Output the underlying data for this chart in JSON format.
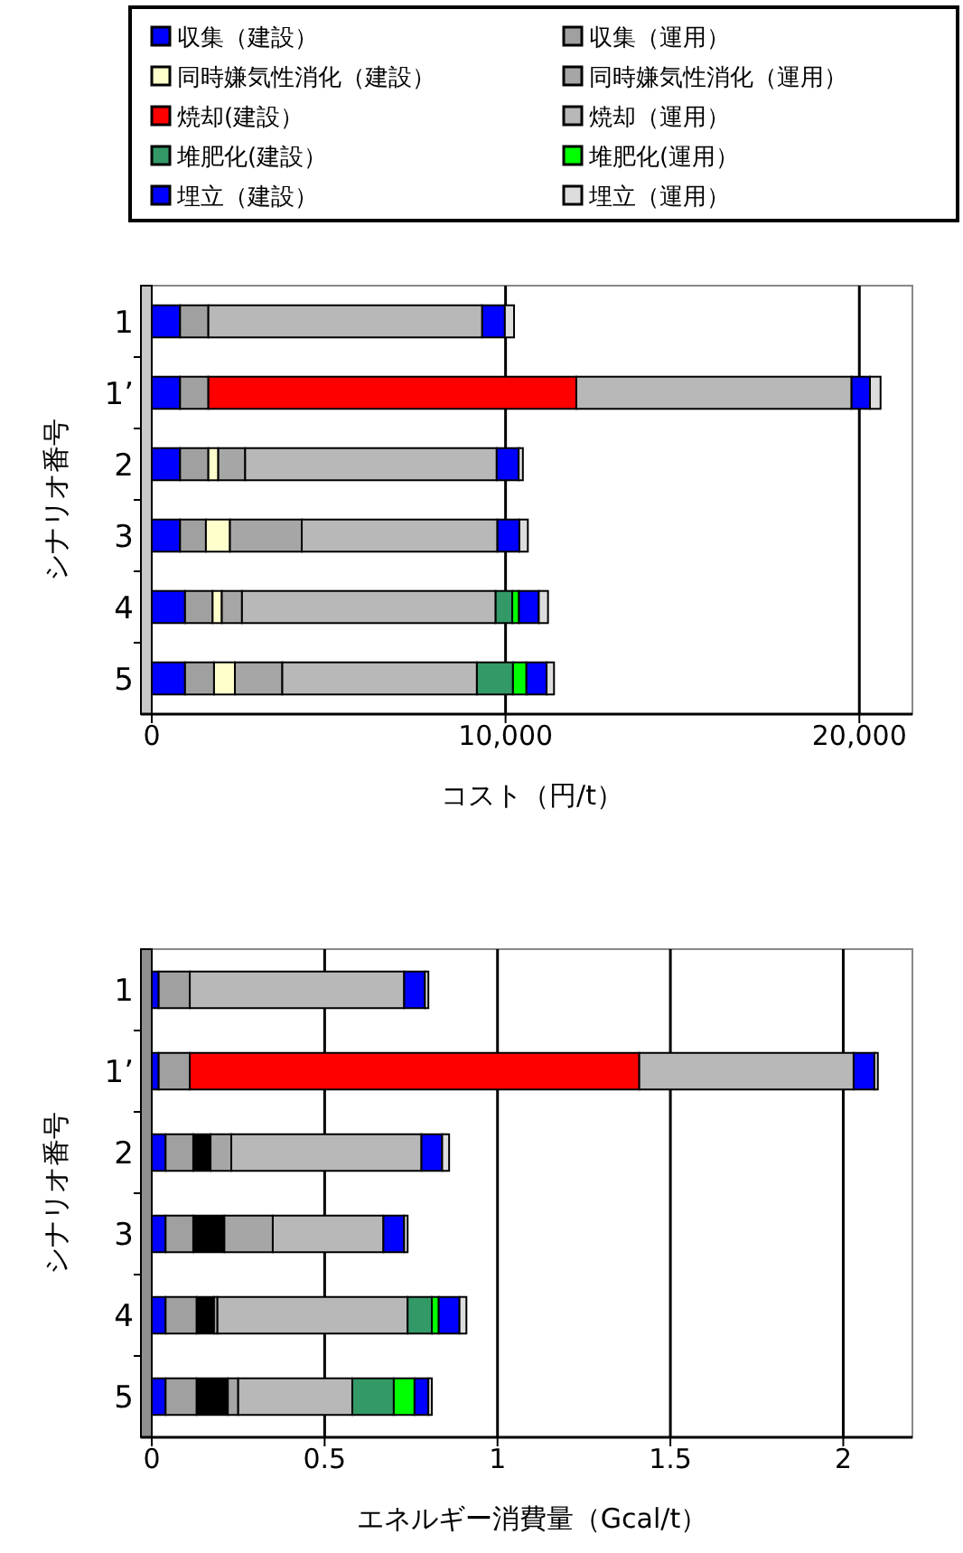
{
  "chart_data": [
    {
      "type": "bar",
      "orientation": "horizontal",
      "stacked": true,
      "legend": "top",
      "grid": "x",
      "xlabel": "コスト（円/t）",
      "ylabel": "シナリオ番号",
      "categories": [
        "1",
        "1’",
        "2",
        "3",
        "4",
        "5"
      ],
      "xlim": [
        0,
        21500
      ],
      "xticks": [
        0,
        {
          "value": 10000,
          "label": "10,000"
        },
        {
          "value": 20000,
          "label": "20,000"
        }
      ],
      "series": [
        {
          "name": "収集（建設）",
          "color": "#0000ff",
          "values": [
            800,
            800,
            800,
            800,
            940,
            940
          ]
        },
        {
          "name": "収集（運用）",
          "color": "#a0a0a0",
          "values": [
            800,
            800,
            800,
            730,
            780,
            820
          ]
        },
        {
          "name": "同時嫌気性消化（建設）",
          "color": "#ffffcc",
          "values": [
            null,
            null,
            280,
            680,
            260,
            590
          ]
        },
        {
          "name": "同時嫌気性消化（運用）",
          "color": "#a6a6a6",
          "values": [
            null,
            null,
            760,
            2030,
            570,
            1340
          ]
        },
        {
          "name": "焼却(建設）",
          "color": "#ff0000",
          "values": [
            null,
            10400,
            null,
            null,
            null,
            null
          ]
        },
        {
          "name": "焼却（運用）",
          "color": "#b8b8b8",
          "values": [
            7740,
            7780,
            7110,
            5530,
            7170,
            5500
          ]
        },
        {
          "name": "堆肥化(建設）",
          "color": "#339966",
          "values": [
            null,
            null,
            null,
            null,
            470,
            1020
          ]
        },
        {
          "name": "堆肥化(運用）",
          "color": "#00ff00",
          "values": [
            null,
            null,
            null,
            null,
            190,
            380
          ]
        },
        {
          "name": "埋立（建設）",
          "color": "#0000ff",
          "values": [
            640,
            520,
            620,
            620,
            560,
            570
          ]
        },
        {
          "name": "埋立（運用）",
          "color": "#dddddd",
          "values": [
            260,
            300,
            120,
            240,
            260,
            210
          ]
        }
      ]
    },
    {
      "type": "bar",
      "orientation": "horizontal",
      "stacked": true,
      "legend": false,
      "grid": "x",
      "xlabel": "エネルギー消費量（Gcal/t）",
      "ylabel": "シナリオ番号",
      "categories": [
        "1",
        "1’",
        "2",
        "3",
        "4",
        "5"
      ],
      "xlim": [
        0,
        2.2
      ],
      "xticks": [
        0,
        0.5,
        1,
        1.5,
        2
      ],
      "series": [
        {
          "color": "#0000ff",
          "values": [
            0.02,
            0.02,
            0.04,
            0.04,
            0.04,
            0.04
          ]
        },
        {
          "color": "#a0a0a0",
          "values": [
            0.09,
            0.09,
            0.08,
            0.08,
            0.09,
            0.09
          ]
        },
        {
          "color": "#000000",
          "values": [
            null,
            null,
            0.05,
            0.09,
            0.05,
            0.09
          ]
        },
        {
          "color": "#a6a6a6",
          "values": [
            null,
            null,
            0.06,
            0.14,
            0.01,
            0.03
          ]
        },
        {
          "color": "#ff0000",
          "values": [
            null,
            1.3,
            null,
            null,
            null,
            null
          ]
        },
        {
          "color": "#b8b8b8",
          "values": [
            0.62,
            0.62,
            0.55,
            0.32,
            0.55,
            0.33
          ]
        },
        {
          "color": "#339966",
          "values": [
            null,
            null,
            null,
            null,
            0.07,
            0.12
          ]
        },
        {
          "color": "#00ff00",
          "values": [
            null,
            null,
            null,
            null,
            0.02,
            0.06
          ]
        },
        {
          "color": "#0000ff",
          "values": [
            0.06,
            0.06,
            0.06,
            0.06,
            0.06,
            0.04
          ]
        },
        {
          "color": "#dddddd",
          "values": [
            0.01,
            0.01,
            0.02,
            0.01,
            0.02,
            0.01
          ]
        }
      ]
    }
  ]
}
